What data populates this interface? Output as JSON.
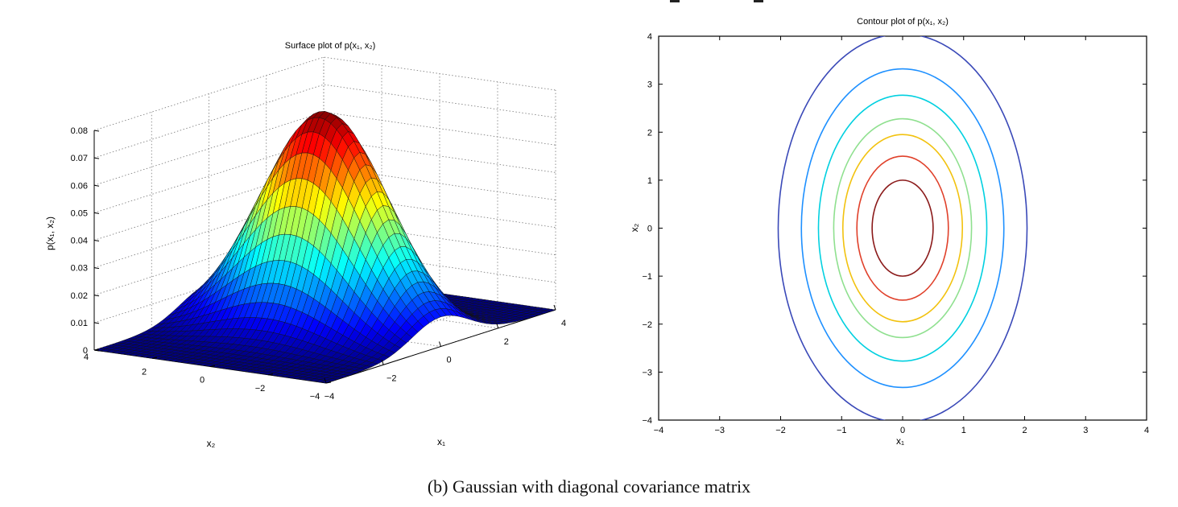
{
  "caption": "(b) Gaussian with diagonal covariance matrix",
  "chart_data": [
    {
      "type": "surface",
      "title": "Surface plot of p(x₁, x₂)",
      "xlabel": "x₁",
      "ylabel": "x₂",
      "zlabel": "p(x₁, x₂)",
      "xlim": [
        -4,
        4
      ],
      "ylim": [
        -4,
        4
      ],
      "zlim": [
        0,
        0.08
      ],
      "xticks": [
        "−4",
        "−2",
        "0",
        "2",
        "4"
      ],
      "yticks": [
        "−4",
        "−2",
        "0",
        "2",
        "4"
      ],
      "zticks": [
        "0",
        "0.01",
        "0.02",
        "0.03",
        "0.04",
        "0.05",
        "0.06",
        "0.07",
        "0.08"
      ],
      "mean": [
        0,
        0
      ],
      "variance": [
        1,
        4
      ],
      "peak": 0.0796,
      "colormap": "jet",
      "grid": true
    },
    {
      "type": "contour",
      "title": "Contour plot of p(x₁, x₂)",
      "xlabel": "x₁",
      "ylabel": "x₂",
      "xlim": [
        -4,
        4
      ],
      "ylim": [
        -4,
        4
      ],
      "xticks": [
        "−4",
        "−3",
        "−2",
        "−1",
        "0",
        "1",
        "2",
        "3",
        "4"
      ],
      "yticks": [
        "−4",
        "−3",
        "−2",
        "−1",
        "0",
        "1",
        "2",
        "3",
        "4"
      ],
      "mean": [
        0,
        0
      ],
      "semi_axes": [
        {
          "x": 0.5,
          "y": 1.0
        },
        {
          "x": 0.75,
          "y": 1.5
        },
        {
          "x": 0.98,
          "y": 1.95
        },
        {
          "x": 1.13,
          "y": 2.28
        },
        {
          "x": 1.38,
          "y": 2.77
        },
        {
          "x": 1.66,
          "y": 3.32
        },
        {
          "x": 2.04,
          "y": 4.05
        }
      ],
      "colors": [
        "#8b1a1a",
        "#e0402a",
        "#f2c20f",
        "#8fe08f",
        "#00d0e0",
        "#1e90ff",
        "#3a49b8"
      ]
    }
  ]
}
